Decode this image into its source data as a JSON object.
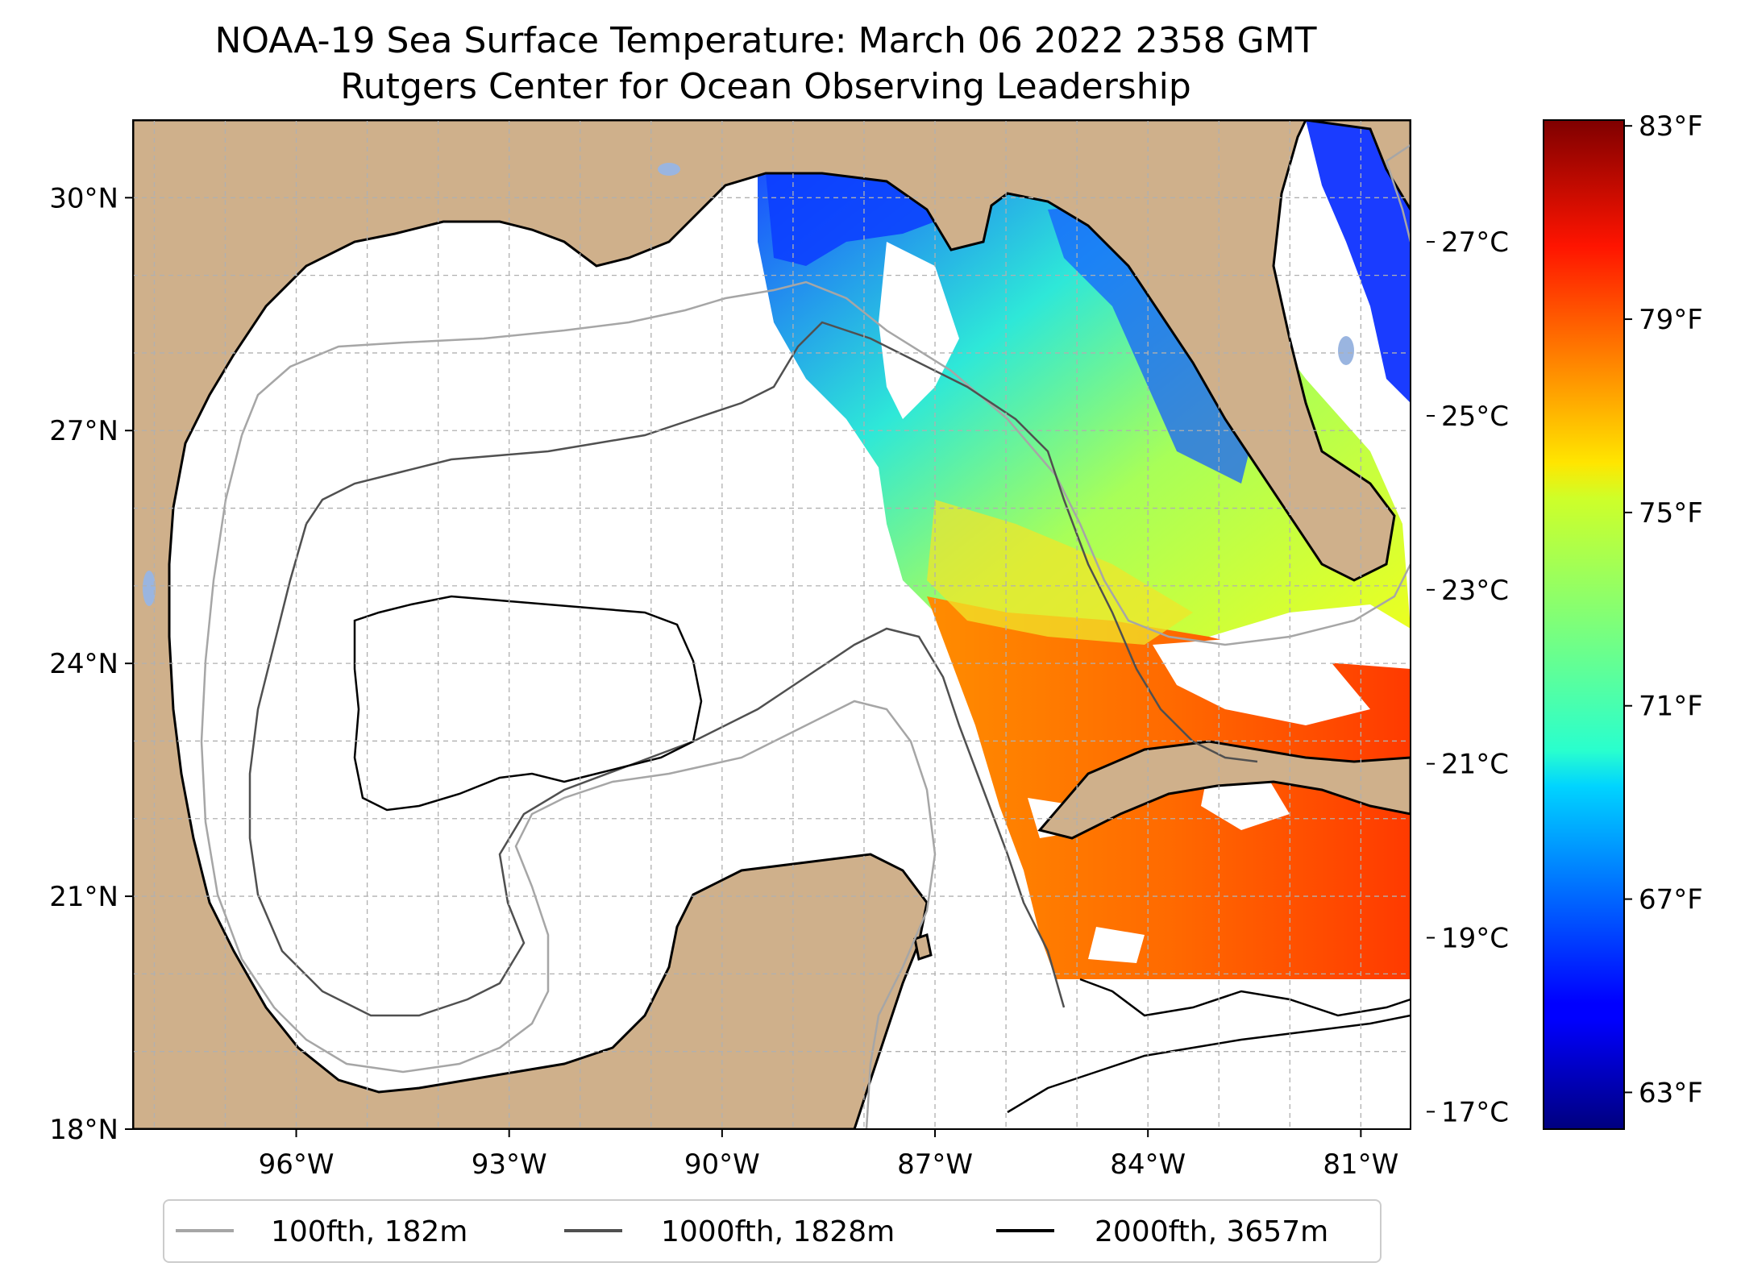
{
  "title_line1": "NOAA-19 Sea Surface Temperature: March 06 2022 2358 GMT",
  "title_line2": "Rutgers Center for Ocean Observing Leadership",
  "map": {
    "lon_range": [
      -98.3,
      -80.3
    ],
    "lat_range": [
      18.0,
      31.0
    ],
    "lon_ticks": [
      {
        "value": -96,
        "label": "96°W"
      },
      {
        "value": -93,
        "label": "93°W"
      },
      {
        "value": -90,
        "label": "90°W"
      },
      {
        "value": -87,
        "label": "87°W"
      },
      {
        "value": -84,
        "label": "84°W"
      },
      {
        "value": -81,
        "label": "81°W"
      }
    ],
    "lat_ticks": [
      {
        "value": 18,
        "label": "18°N"
      },
      {
        "value": 21,
        "label": "21°N"
      },
      {
        "value": 24,
        "label": "24°N"
      },
      {
        "value": 27,
        "label": "27°N"
      },
      {
        "value": 30,
        "label": "30°N"
      }
    ],
    "land_color": "#cfb08b",
    "grid": true
  },
  "colorbar": {
    "colormap": "jet",
    "celsius_range": [
      16.8,
      28.4
    ],
    "celsius_ticks": [
      {
        "value": 17,
        "label": "17°C"
      },
      {
        "value": 19,
        "label": "19°C"
      },
      {
        "value": 21,
        "label": "21°C"
      },
      {
        "value": 23,
        "label": "23°C"
      },
      {
        "value": 25,
        "label": "25°C"
      },
      {
        "value": 27,
        "label": "27°C"
      }
    ],
    "fahrenheit_ticks": [
      {
        "value": 63,
        "label": "63°F"
      },
      {
        "value": 67,
        "label": "67°F"
      },
      {
        "value": 71,
        "label": "71°F"
      },
      {
        "value": 75,
        "label": "75°F"
      },
      {
        "value": 79,
        "label": "79°F"
      },
      {
        "value": 83,
        "label": "83°F"
      }
    ]
  },
  "legend": [
    {
      "label": "100fth, 182m",
      "color": "#a6a6a6"
    },
    {
      "label": "1000fth, 1828m",
      "color": "#505050"
    },
    {
      "label": "2000fth, 3657m",
      "color": "#000000"
    }
  ]
}
